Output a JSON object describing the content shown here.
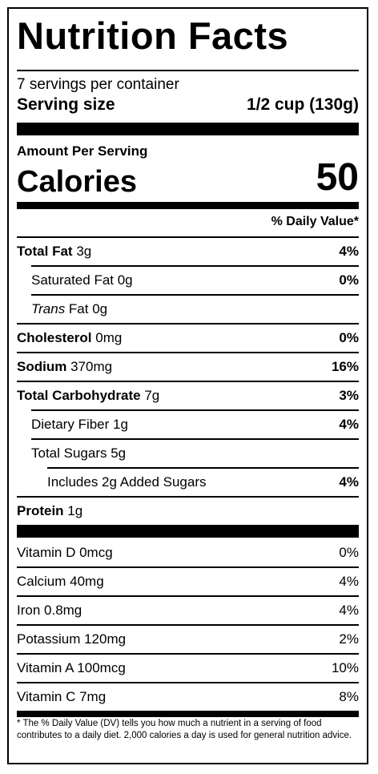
{
  "label": {
    "title": "Nutrition Facts",
    "servings_per_container": "7 servings per container",
    "serving_size_label": "Serving size",
    "serving_size_value": "1/2 cup (130g)",
    "amount_per_serving": "Amount Per Serving",
    "calories_label": "Calories",
    "calories_value": "50",
    "dv_header": "% Daily Value*"
  },
  "nutrients": {
    "total_fat": {
      "name": "Total Fat",
      "amount": "3g",
      "dv": "4%"
    },
    "saturated_fat": {
      "name": "Saturated Fat 0g",
      "dv": "0%"
    },
    "trans_fat": {
      "name_italic": "Trans",
      "name_rest": " Fat 0g"
    },
    "cholesterol": {
      "name": "Cholesterol",
      "amount": "0mg",
      "dv": "0%"
    },
    "sodium": {
      "name": "Sodium",
      "amount": "370mg",
      "dv": "16%"
    },
    "total_carbohydrate": {
      "name": "Total Carbohydrate",
      "amount": "7g",
      "dv": "3%"
    },
    "dietary_fiber": {
      "name": "Dietary Fiber 1g",
      "dv": "4%"
    },
    "total_sugars": {
      "name": "Total Sugars 5g"
    },
    "added_sugars": {
      "name": "Includes 2g Added Sugars",
      "dv": "4%"
    },
    "protein": {
      "name": "Protein",
      "amount": "1g"
    }
  },
  "vitamins": [
    {
      "name": "Vitamin D 0mcg",
      "dv": "0%"
    },
    {
      "name": "Calcium 40mg",
      "dv": "4%"
    },
    {
      "name": "Iron 0.8mg",
      "dv": "4%"
    },
    {
      "name": "Potassium 120mg",
      "dv": "2%"
    },
    {
      "name": "Vitamin A 100mcg",
      "dv": "10%"
    },
    {
      "name": "Vitamin C 7mg",
      "dv": "8%"
    }
  ],
  "footnote": "* The % Daily Value (DV) tells you how much a nutrient in a serving of food contributes to a daily diet. 2,000 calories a day is used for general nutrition advice."
}
